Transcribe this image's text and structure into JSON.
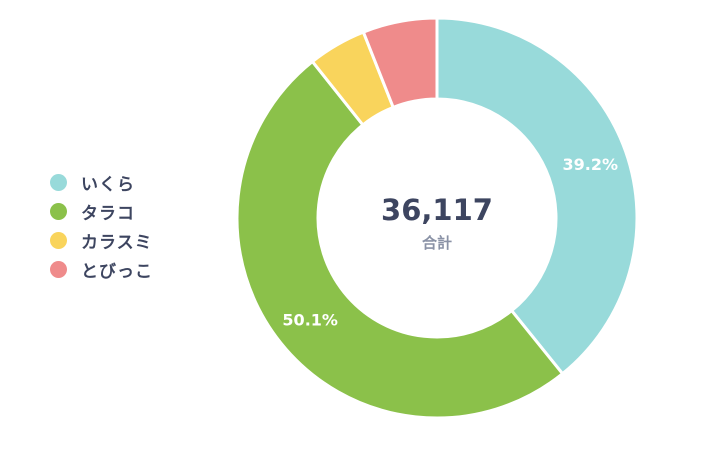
{
  "chart_data": {
    "type": "pie",
    "donut": true,
    "categories": [
      "いくら",
      "タラコ",
      "カラスミ",
      "とびっこ"
    ],
    "values": [
      39.2,
      50.1,
      4.7,
      6.0
    ],
    "colors": [
      "#98dada",
      "#8bc14a",
      "#f9d45c",
      "#ef8b8b"
    ],
    "data_labels": [
      "39.2%",
      "50.1%",
      "",
      ""
    ],
    "legend_position": "left"
  },
  "center": {
    "total_value": "36,117",
    "total_label": "合計"
  }
}
